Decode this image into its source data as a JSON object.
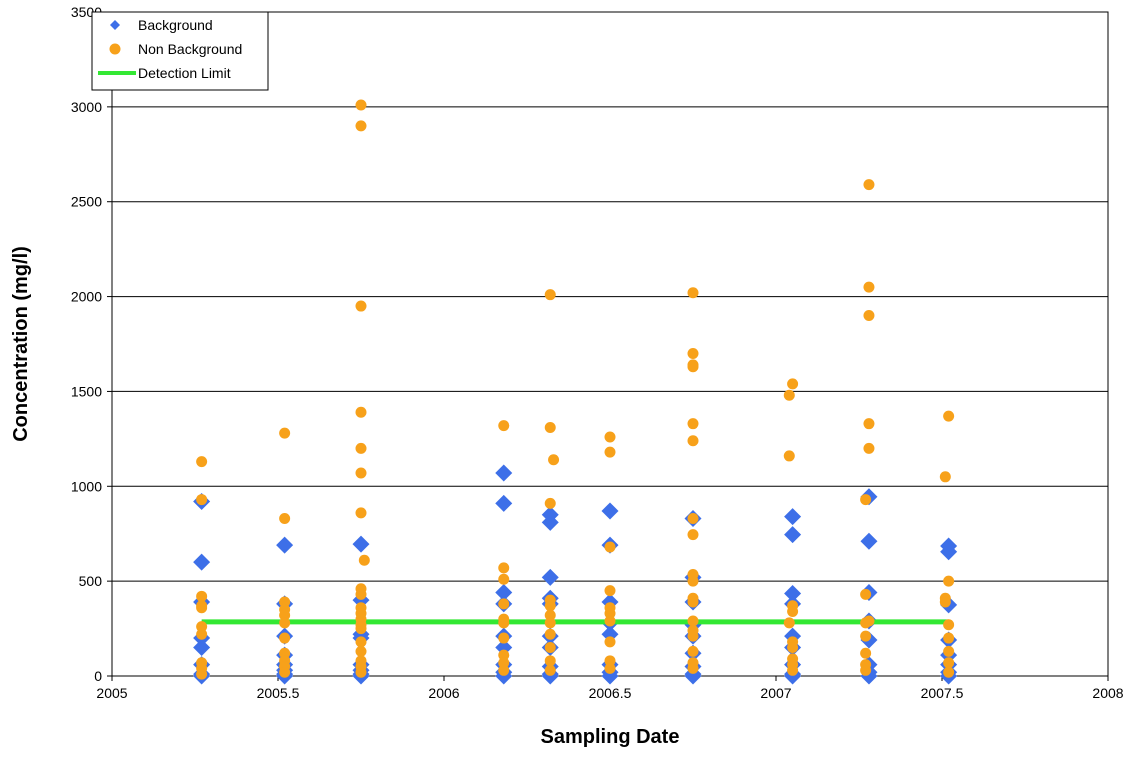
{
  "chart_data": {
    "type": "scatter",
    "xlabel": "Sampling Date",
    "ylabel": "Concentration (mg/l)",
    "xlim": [
      2005,
      2008
    ],
    "ylim": [
      0,
      3500
    ],
    "x_ticks": [
      2005,
      2005.5,
      2006,
      2006.5,
      2007,
      2007.5,
      2008
    ],
    "x_tick_labels": [
      "2005",
      "2005.5",
      "2006",
      "2006.5",
      "2007",
      "2007.5",
      "2008"
    ],
    "y_ticks": [
      0,
      500,
      1000,
      1500,
      2000,
      2500,
      3000,
      3500
    ],
    "y_tick_labels": [
      "0",
      "500",
      "1000",
      "1500",
      "2000",
      "2500",
      "3000",
      "3500"
    ],
    "grid": "horizontal",
    "legend_position": "top-left",
    "series": [
      {
        "name": "Background",
        "marker": "diamond",
        "color": "#3D6FE8",
        "points": [
          [
            2005.27,
            920
          ],
          [
            2005.27,
            600
          ],
          [
            2005.27,
            390
          ],
          [
            2005.27,
            200
          ],
          [
            2005.27,
            150
          ],
          [
            2005.27,
            60
          ],
          [
            2005.27,
            10
          ],
          [
            2005.27,
            0
          ],
          [
            2005.52,
            690
          ],
          [
            2005.52,
            380
          ],
          [
            2005.52,
            210
          ],
          [
            2005.52,
            110
          ],
          [
            2005.52,
            60
          ],
          [
            2005.52,
            30
          ],
          [
            2005.52,
            10
          ],
          [
            2005.52,
            0
          ],
          [
            2005.75,
            695
          ],
          [
            2005.75,
            400
          ],
          [
            2005.75,
            220
          ],
          [
            2005.75,
            200
          ],
          [
            2005.75,
            60
          ],
          [
            2005.75,
            30
          ],
          [
            2005.75,
            10
          ],
          [
            2005.75,
            0
          ],
          [
            2006.18,
            1070
          ],
          [
            2006.18,
            910
          ],
          [
            2006.18,
            440
          ],
          [
            2006.18,
            380
          ],
          [
            2006.18,
            210
          ],
          [
            2006.18,
            150
          ],
          [
            2006.18,
            60
          ],
          [
            2006.18,
            20
          ],
          [
            2006.18,
            0
          ],
          [
            2006.32,
            850
          ],
          [
            2006.32,
            810
          ],
          [
            2006.32,
            520
          ],
          [
            2006.32,
            410
          ],
          [
            2006.32,
            380
          ],
          [
            2006.32,
            210
          ],
          [
            2006.32,
            150
          ],
          [
            2006.32,
            50
          ],
          [
            2006.32,
            10
          ],
          [
            2006.32,
            0
          ],
          [
            2006.5,
            870
          ],
          [
            2006.5,
            690
          ],
          [
            2006.5,
            390
          ],
          [
            2006.5,
            280
          ],
          [
            2006.5,
            220
          ],
          [
            2006.5,
            60
          ],
          [
            2006.5,
            20
          ],
          [
            2006.5,
            0
          ],
          [
            2006.75,
            830
          ],
          [
            2006.75,
            520
          ],
          [
            2006.75,
            390
          ],
          [
            2006.75,
            270
          ],
          [
            2006.75,
            210
          ],
          [
            2006.75,
            120
          ],
          [
            2006.75,
            50
          ],
          [
            2006.75,
            10
          ],
          [
            2006.75,
            0
          ],
          [
            2007.05,
            840
          ],
          [
            2007.05,
            745
          ],
          [
            2007.05,
            435
          ],
          [
            2007.05,
            380
          ],
          [
            2007.05,
            210
          ],
          [
            2007.05,
            150
          ],
          [
            2007.05,
            60
          ],
          [
            2007.05,
            10
          ],
          [
            2007.05,
            0
          ],
          [
            2007.28,
            945
          ],
          [
            2007.28,
            710
          ],
          [
            2007.28,
            440
          ],
          [
            2007.28,
            290
          ],
          [
            2007.28,
            190
          ],
          [
            2007.28,
            60
          ],
          [
            2007.28,
            20
          ],
          [
            2007.28,
            0
          ],
          [
            2007.52,
            685
          ],
          [
            2007.52,
            655
          ],
          [
            2007.52,
            375
          ],
          [
            2007.52,
            190
          ],
          [
            2007.52,
            110
          ],
          [
            2007.52,
            60
          ],
          [
            2007.52,
            20
          ],
          [
            2007.52,
            0
          ]
        ]
      },
      {
        "name": "Non Background",
        "marker": "circle",
        "color": "#F7A11A",
        "points": [
          [
            2005.27,
            1130
          ],
          [
            2005.27,
            930
          ],
          [
            2005.27,
            420
          ],
          [
            2005.27,
            370
          ],
          [
            2005.27,
            360
          ],
          [
            2005.27,
            260
          ],
          [
            2005.27,
            220
          ],
          [
            2005.27,
            70
          ],
          [
            2005.27,
            40
          ],
          [
            2005.27,
            10
          ],
          [
            2005.52,
            1280
          ],
          [
            2005.52,
            830
          ],
          [
            2005.52,
            390
          ],
          [
            2005.52,
            350
          ],
          [
            2005.52,
            320
          ],
          [
            2005.52,
            280
          ],
          [
            2005.52,
            200
          ],
          [
            2005.52,
            120
          ],
          [
            2005.52,
            80
          ],
          [
            2005.52,
            50
          ],
          [
            2005.52,
            20
          ],
          [
            2005.75,
            3010
          ],
          [
            2005.75,
            2900
          ],
          [
            2005.75,
            1950
          ],
          [
            2005.75,
            1390
          ],
          [
            2005.75,
            1200
          ],
          [
            2005.75,
            1070
          ],
          [
            2005.75,
            860
          ],
          [
            2005.76,
            610
          ],
          [
            2005.75,
            460
          ],
          [
            2005.75,
            430
          ],
          [
            2005.75,
            360
          ],
          [
            2005.75,
            330
          ],
          [
            2005.75,
            300
          ],
          [
            2005.75,
            270
          ],
          [
            2005.75,
            250
          ],
          [
            2005.75,
            180
          ],
          [
            2005.75,
            130
          ],
          [
            2005.75,
            80
          ],
          [
            2005.75,
            50
          ],
          [
            2005.75,
            20
          ],
          [
            2006.18,
            1320
          ],
          [
            2006.18,
            570
          ],
          [
            2006.18,
            510
          ],
          [
            2006.18,
            380
          ],
          [
            2006.18,
            300
          ],
          [
            2006.18,
            280
          ],
          [
            2006.18,
            200
          ],
          [
            2006.18,
            110
          ],
          [
            2006.18,
            70
          ],
          [
            2006.18,
            30
          ],
          [
            2006.32,
            2010
          ],
          [
            2006.32,
            1310
          ],
          [
            2006.33,
            1140
          ],
          [
            2006.32,
            910
          ],
          [
            2006.32,
            400
          ],
          [
            2006.32,
            370
          ],
          [
            2006.32,
            320
          ],
          [
            2006.32,
            280
          ],
          [
            2006.32,
            220
          ],
          [
            2006.32,
            150
          ],
          [
            2006.32,
            80
          ],
          [
            2006.32,
            30
          ],
          [
            2006.5,
            1260
          ],
          [
            2006.5,
            1180
          ],
          [
            2006.5,
            680
          ],
          [
            2006.5,
            450
          ],
          [
            2006.5,
            360
          ],
          [
            2006.5,
            330
          ],
          [
            2006.5,
            290
          ],
          [
            2006.5,
            180
          ],
          [
            2006.5,
            80
          ],
          [
            2006.5,
            40
          ],
          [
            2006.75,
            2020
          ],
          [
            2006.75,
            1700
          ],
          [
            2006.75,
            1640
          ],
          [
            2006.75,
            1630
          ],
          [
            2006.75,
            1330
          ],
          [
            2006.75,
            1240
          ],
          [
            2006.75,
            830
          ],
          [
            2006.75,
            745
          ],
          [
            2006.75,
            535
          ],
          [
            2006.75,
            500
          ],
          [
            2006.75,
            410
          ],
          [
            2006.75,
            390
          ],
          [
            2006.75,
            290
          ],
          [
            2006.75,
            240
          ],
          [
            2006.75,
            210
          ],
          [
            2006.75,
            130
          ],
          [
            2006.75,
            70
          ],
          [
            2006.75,
            40
          ],
          [
            2007.05,
            1540
          ],
          [
            2007.04,
            1480
          ],
          [
            2007.04,
            1160
          ],
          [
            2007.05,
            370
          ],
          [
            2007.05,
            340
          ],
          [
            2007.04,
            280
          ],
          [
            2007.05,
            180
          ],
          [
            2007.05,
            150
          ],
          [
            2007.05,
            90
          ],
          [
            2007.05,
            60
          ],
          [
            2007.05,
            30
          ],
          [
            2007.28,
            2590
          ],
          [
            2007.28,
            2050
          ],
          [
            2007.28,
            1900
          ],
          [
            2007.28,
            1330
          ],
          [
            2007.28,
            1200
          ],
          [
            2007.27,
            930
          ],
          [
            2007.27,
            430
          ],
          [
            2007.28,
            290
          ],
          [
            2007.27,
            280
          ],
          [
            2007.27,
            210
          ],
          [
            2007.27,
            120
          ],
          [
            2007.27,
            60
          ],
          [
            2007.27,
            30
          ],
          [
            2007.52,
            1370
          ],
          [
            2007.51,
            1050
          ],
          [
            2007.52,
            500
          ],
          [
            2007.51,
            410
          ],
          [
            2007.51,
            390
          ],
          [
            2007.52,
            270
          ],
          [
            2007.52,
            200
          ],
          [
            2007.52,
            130
          ],
          [
            2007.52,
            70
          ],
          [
            2007.52,
            20
          ]
        ]
      },
      {
        "name": "Detection Limit",
        "marker": "line",
        "color": "#33E833",
        "points": [
          [
            2005.27,
            285
          ],
          [
            2007.52,
            285
          ]
        ]
      }
    ]
  }
}
